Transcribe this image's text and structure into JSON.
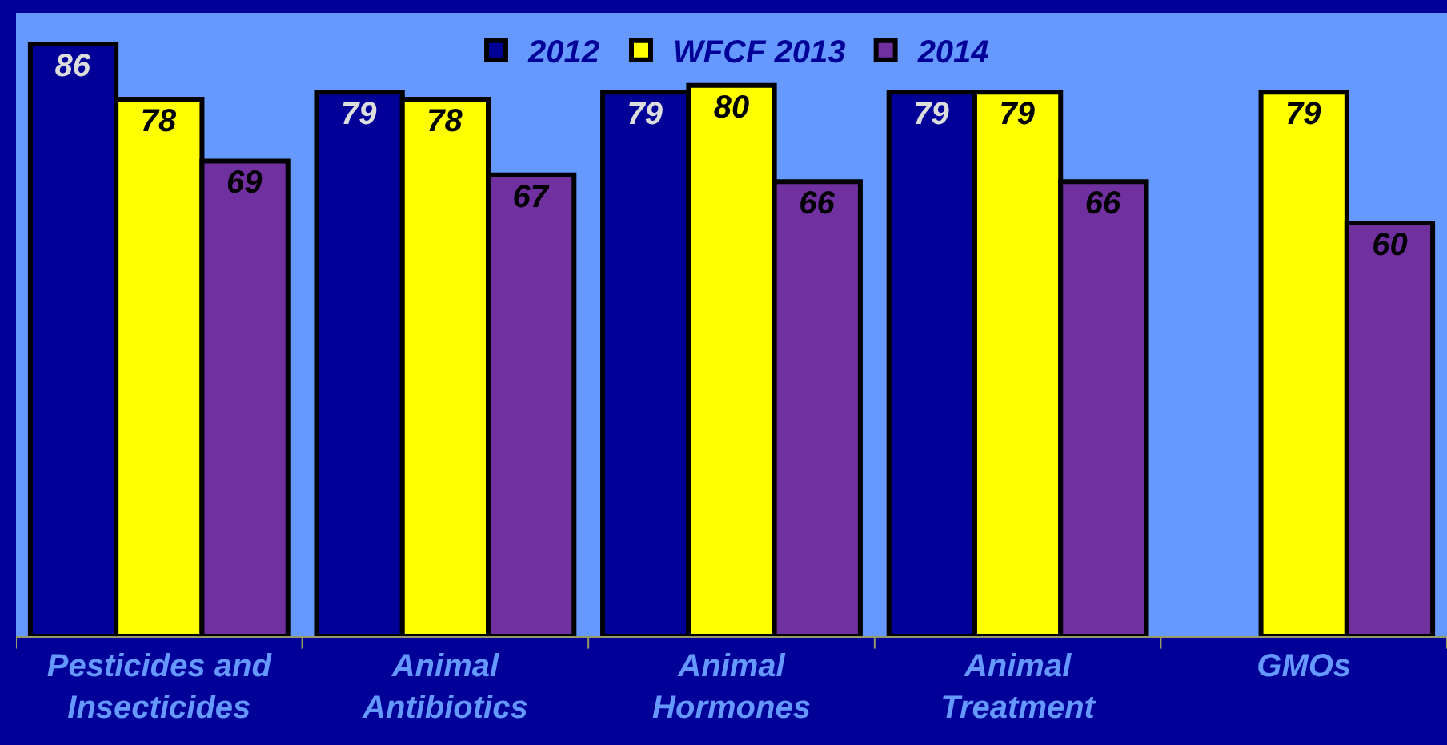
{
  "chart_data": {
    "type": "bar",
    "categories": [
      "Pesticides and Insecticides",
      "Animal Antibiotics",
      "Animal Hormones",
      "Animal Treatment",
      "GMOs"
    ],
    "series": [
      {
        "name": "2012",
        "color": "#000099",
        "values": [
          86,
          79,
          79,
          79,
          null
        ]
      },
      {
        "name": "WFCF 2013",
        "color": "#ffff00",
        "values": [
          78,
          78,
          80,
          79,
          79
        ]
      },
      {
        "name": "2014",
        "color": "#7030a0",
        "values": [
          69,
          67,
          66,
          66,
          60
        ]
      }
    ],
    "data_labels": true,
    "legend": "top"
  }
}
